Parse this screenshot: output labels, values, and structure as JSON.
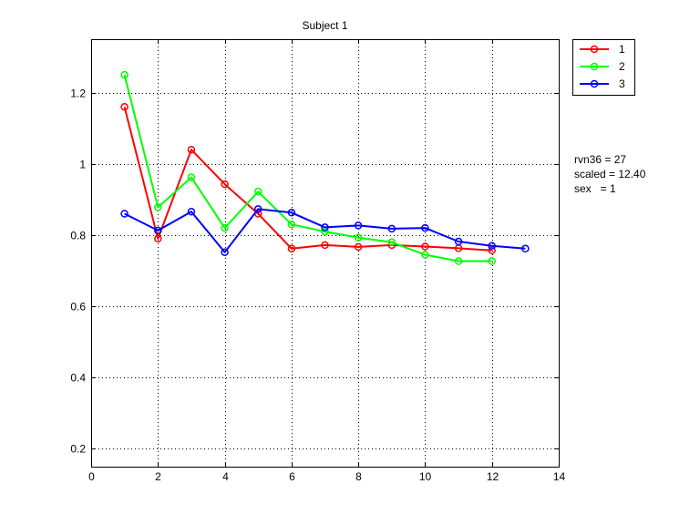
{
  "chart_data": {
    "type": "line",
    "title": "Subject 1",
    "xlabel": "",
    "ylabel": "",
    "xlim": [
      0,
      14
    ],
    "ylim": [
      0.15,
      1.35
    ],
    "xticks": [
      0,
      2,
      4,
      6,
      8,
      10,
      12,
      14
    ],
    "yticks": [
      0.2,
      0.4,
      0.6,
      0.8,
      1.0,
      1.2
    ],
    "ytick_labels": [
      "0.2",
      "0.4",
      "0.6",
      "0.8",
      "1",
      "1.2"
    ],
    "grid": true,
    "legend_position": "outside-top-right",
    "series": [
      {
        "name": "1",
        "color": "#ff0000",
        "x": [
          1,
          2,
          3,
          4,
          5,
          6,
          7,
          8,
          9,
          10,
          11,
          12
        ],
        "y": [
          1.16,
          0.79,
          1.04,
          0.943,
          0.86,
          0.762,
          0.772,
          0.767,
          0.772,
          0.768,
          0.763,
          0.757
        ]
      },
      {
        "name": "2",
        "color": "#00ff00",
        "x": [
          1,
          2,
          3,
          4,
          5,
          6,
          7,
          8,
          9,
          10,
          11,
          12
        ],
        "y": [
          1.25,
          0.878,
          0.962,
          0.82,
          0.922,
          0.83,
          0.81,
          0.793,
          0.78,
          0.745,
          0.727,
          0.727
        ]
      },
      {
        "name": "3",
        "color": "#0000ff",
        "x": [
          1,
          2,
          3,
          4,
          5,
          6,
          7,
          8,
          9,
          10,
          11,
          12,
          13
        ],
        "y": [
          0.86,
          0.813,
          0.866,
          0.752,
          0.873,
          0.863,
          0.822,
          0.827,
          0.818,
          0.82,
          0.782,
          0.77,
          0.762
        ]
      }
    ],
    "annotations": [
      "rvn36 = 27",
      "scaled = 12.40",
      "sex   = 1"
    ]
  }
}
